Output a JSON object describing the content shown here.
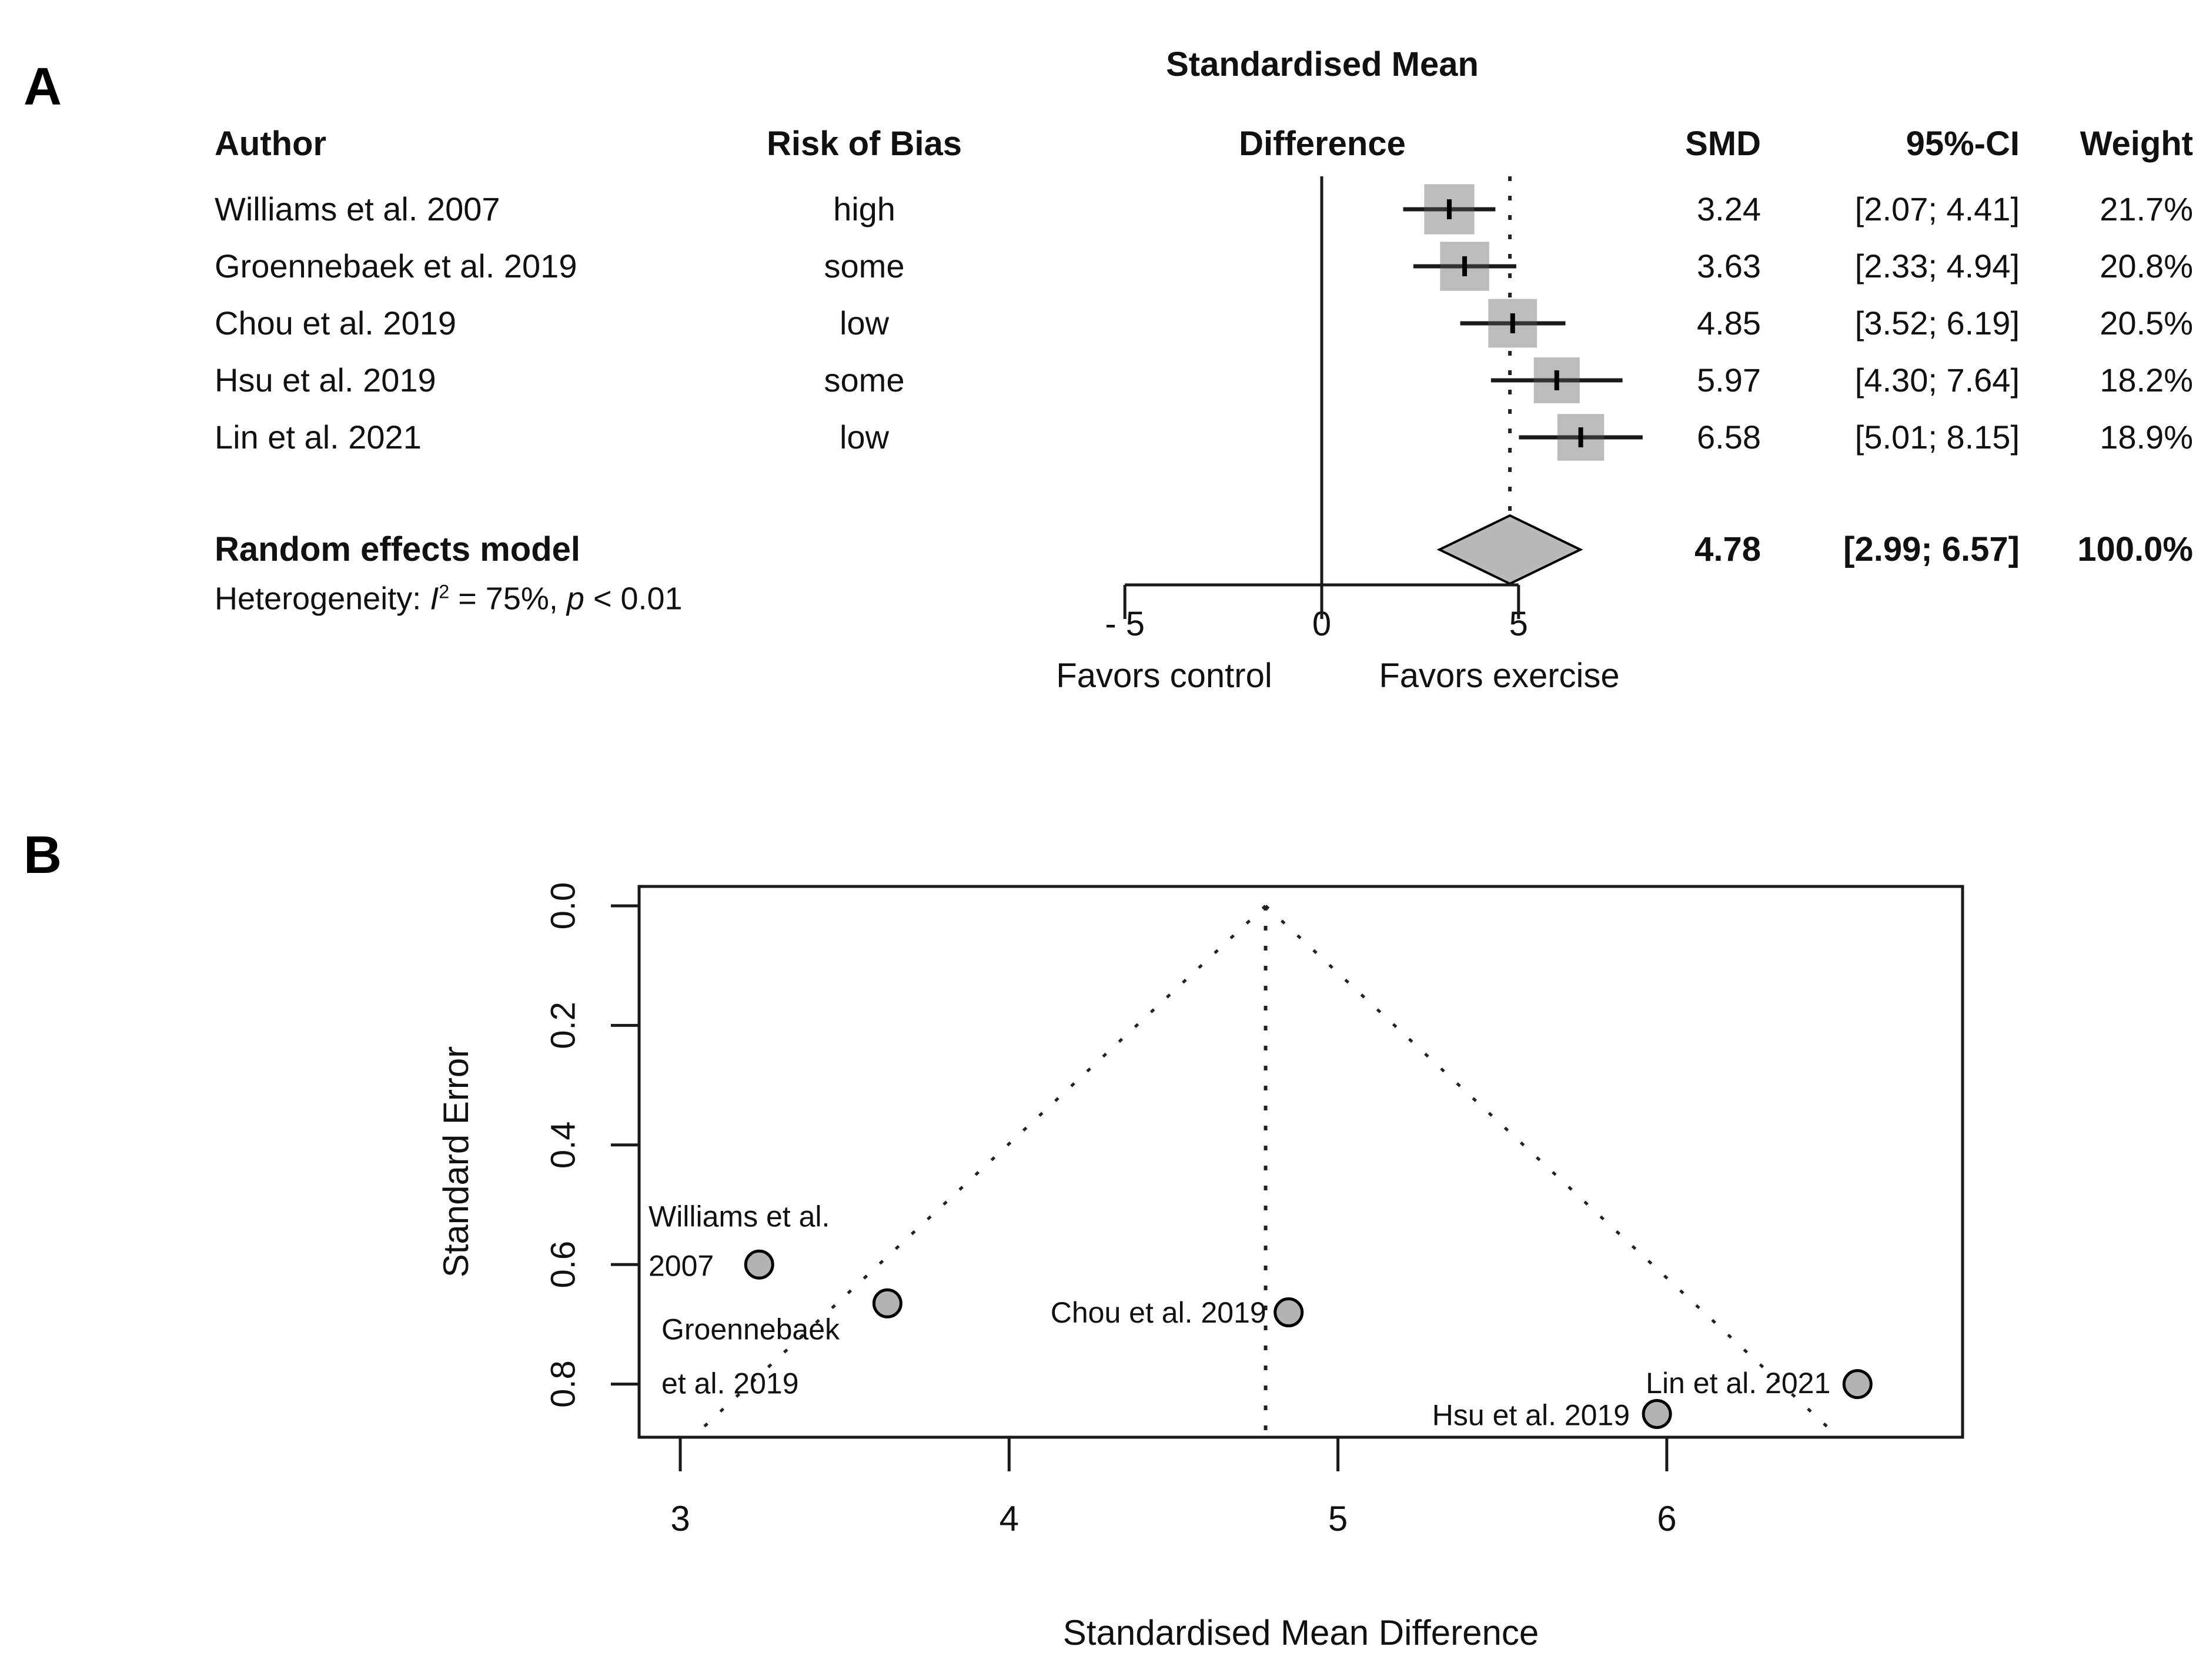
{
  "figure": {
    "panel_a_label": "A",
    "panel_b_label": "B"
  },
  "colors": {
    "line": "#1a1a1a",
    "square_fill": "#bcbcbc",
    "diamond_fill": "#b9b9b9",
    "point_fill": "#b3b3b3",
    "dotted": "#222222"
  },
  "chart_data": [
    {
      "type": "forest",
      "panel": "A",
      "title_line1": "Standardised Mean",
      "title_line2": "Difference",
      "columns": {
        "author": "Author",
        "risk": "Risk of Bias",
        "smd": "SMD",
        "ci": "95%-CI",
        "weight": "Weight"
      },
      "studies": [
        {
          "author": "Williams et al. 2007",
          "risk": "high",
          "smd": 3.24,
          "smd_text": "3.24",
          "ci_low": 2.07,
          "ci_high": 4.41,
          "ci_text": "[2.07; 4.41]",
          "weight": 21.7,
          "weight_text": "21.7%"
        },
        {
          "author": "Groennebaek et al. 2019",
          "risk": "some",
          "smd": 3.63,
          "smd_text": "3.63",
          "ci_low": 2.33,
          "ci_high": 4.94,
          "ci_text": "[2.33; 4.94]",
          "weight": 20.8,
          "weight_text": "20.8%"
        },
        {
          "author": "Chou et al. 2019",
          "risk": "low",
          "smd": 4.85,
          "smd_text": "4.85",
          "ci_low": 3.52,
          "ci_high": 6.19,
          "ci_text": "[3.52; 6.19]",
          "weight": 20.5,
          "weight_text": "20.5%"
        },
        {
          "author": "Hsu et al. 2019",
          "risk": "some",
          "smd": 5.97,
          "smd_text": "5.97",
          "ci_low": 4.3,
          "ci_high": 7.64,
          "ci_text": "[4.30; 7.64]",
          "weight": 18.2,
          "weight_text": "18.2%"
        },
        {
          "author": "Lin et al. 2021",
          "risk": "low",
          "smd": 6.58,
          "smd_text": "6.58",
          "ci_low": 5.01,
          "ci_high": 8.15,
          "ci_text": "[5.01; 8.15]",
          "weight": 18.9,
          "weight_text": "18.9%"
        }
      ],
      "pooled": {
        "label": "Random effects model",
        "smd": 4.78,
        "smd_text": "4.78",
        "ci_low": 2.99,
        "ci_high": 6.57,
        "ci_text": "[2.99; 6.57]",
        "weight_text": "100.0%"
      },
      "heterogeneity": {
        "prefix": "Heterogeneity: ",
        "i": "I",
        "i_sup": "2",
        "mid": " = 75%, ",
        "p": "p",
        "suffix": " < 0.01"
      },
      "x_axis": {
        "ticks": [
          -5,
          0,
          5
        ],
        "tick_labels": [
          "- 5",
          "0",
          "5"
        ],
        "range": [
          -5,
          5
        ],
        "zero_line": 0,
        "pooled_line": 4.78
      },
      "favors_left": "Favors control",
      "favors_right": "Favors exercise"
    },
    {
      "type": "scatter",
      "panel": "B",
      "xlabel": "Standardised Mean Difference",
      "ylabel": "Standard Error",
      "x_ticks": [
        3,
        4,
        5,
        6
      ],
      "x_tick_labels": [
        "3",
        "4",
        "5",
        "6"
      ],
      "y_ticks": [
        0.0,
        0.2,
        0.4,
        0.6,
        0.8
      ],
      "y_tick_labels": [
        "0.0",
        "0.2",
        "0.4",
        "0.6",
        "0.8"
      ],
      "xlim": [
        2.87,
        6.9
      ],
      "ylim": [
        0,
        0.89
      ],
      "center_line_x": 4.78,
      "funnel_ci_multiplier": 1.96,
      "grid": false,
      "points": [
        {
          "study": "Williams et al. 2007",
          "label_lines": [
            "Williams et al.",
            "2007"
          ],
          "x": 3.24,
          "se": 0.6
        },
        {
          "study": "Groennebaek et al. 2019",
          "label_lines": [
            "Groennebaek",
            "et al. 2019"
          ],
          "x": 3.63,
          "se": 0.665
        },
        {
          "study": "Chou et al. 2019",
          "label_lines": [
            "Chou et al. 2019"
          ],
          "x": 4.85,
          "se": 0.68
        },
        {
          "study": "Hsu et al. 2019",
          "label_lines": [
            "Hsu et al. 2019"
          ],
          "x": 5.97,
          "se": 0.85
        },
        {
          "study": "Lin et al. 2021",
          "label_lines": [
            "Lin et al. 2021"
          ],
          "x": 6.58,
          "se": 0.8
        }
      ]
    }
  ]
}
